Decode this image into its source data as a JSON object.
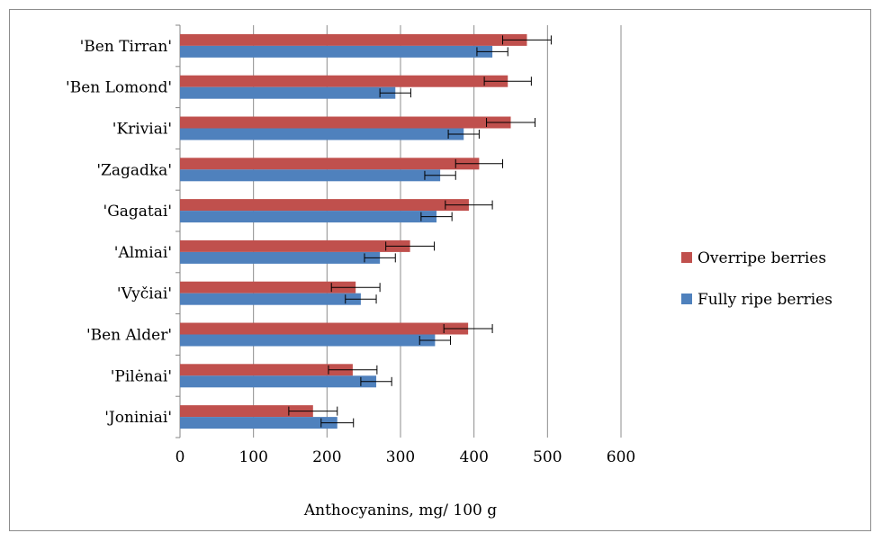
{
  "chart_data": {
    "type": "bar",
    "orientation": "horizontal",
    "xlabel": "Anthocyanins, mg/ 100 g",
    "ylabel": "",
    "title": "",
    "xlim": [
      0,
      600
    ],
    "xticks": [
      0,
      100,
      200,
      300,
      400,
      500,
      600
    ],
    "grid": "vertical",
    "legend_position": "right",
    "categories": [
      "'Ben Tirran'",
      "'Ben Lomond'",
      "'Kriviai'",
      "'Zagadka'",
      "'Gagatai'",
      "'Almiai'",
      "'Vyčiai'",
      "'Ben Alder'",
      "'Pilėnai'",
      "'Joniniai'"
    ],
    "series": [
      {
        "name": "Overripe berries",
        "color": "#c0504d",
        "values": [
          472,
          446,
          450,
          407,
          393,
          313,
          239,
          392,
          235,
          181
        ],
        "errors": [
          33,
          32,
          33,
          32,
          32,
          33,
          33,
          33,
          33,
          33
        ]
      },
      {
        "name": "Fully ripe berries",
        "color": "#4f81bd",
        "values": [
          425,
          293,
          386,
          354,
          349,
          272,
          246,
          347,
          267,
          214
        ],
        "errors": [
          21,
          21,
          21,
          21,
          21,
          21,
          21,
          21,
          21,
          22
        ]
      }
    ]
  }
}
